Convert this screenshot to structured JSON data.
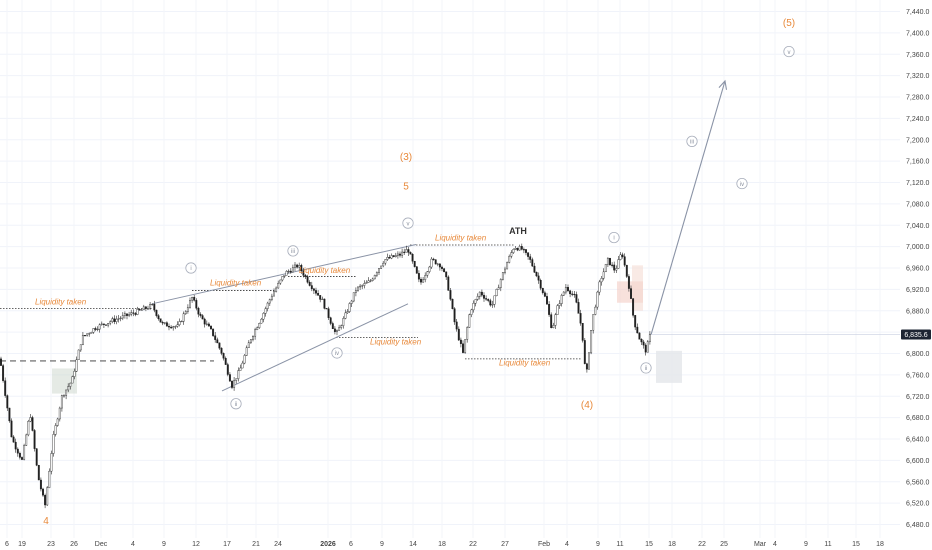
{
  "chart_data": {
    "type": "candlestick",
    "title": "",
    "xlabel": "",
    "ylabel": "",
    "ylim": [
      6455,
      7450
    ],
    "x_tick_labels": [
      "6",
      "19",
      "23",
      "26",
      "Dec",
      "4",
      "9",
      "12",
      "17",
      "21",
      "24",
      "2026",
      "6",
      "9",
      "14",
      "18",
      "22",
      "27",
      "Feb",
      "4",
      "9",
      "11",
      "15",
      "18",
      "22",
      "25",
      "Mar",
      "4",
      "9",
      "11",
      "15",
      "18"
    ],
    "y_ticks": [
      6480,
      6520,
      6560,
      6600,
      6640,
      6680,
      6720,
      6760,
      6800,
      6840,
      6880,
      6920,
      6960,
      7000,
      7040,
      7080,
      7120,
      7160,
      7200,
      7240,
      7280,
      7320,
      7360,
      7400,
      7440
    ],
    "y_tick_labels": [
      "6,480.0",
      "6,520.0",
      "6,560.0",
      "6,600.0",
      "6,640.0",
      "6,680.0",
      "6,720.0",
      "6,760.0",
      "6,800.0",
      "6,840.0",
      "6,880.0",
      "6,920.0",
      "6,960.0",
      "7,000.0",
      "7,040.0",
      "7,080.0",
      "7,120.0",
      "7,160.0",
      "7,200.0",
      "7,240.0",
      "7,280.0",
      "7,320.0",
      "7,360.0",
      "7,400.0",
      "7,440.0"
    ],
    "last_price": 6835.6,
    "last_price_label": "6,835.6",
    "price_path": [
      [
        0,
        6790
      ],
      [
        12,
        6640
      ],
      [
        22,
        6600
      ],
      [
        30,
        6690
      ],
      [
        38,
        6570
      ],
      [
        45,
        6515
      ],
      [
        53,
        6640
      ],
      [
        62,
        6720
      ],
      [
        72,
        6750
      ],
      [
        82,
        6830
      ],
      [
        95,
        6848
      ],
      [
        110,
        6860
      ],
      [
        125,
        6870
      ],
      [
        140,
        6880
      ],
      [
        152,
        6890
      ],
      [
        162,
        6855
      ],
      [
        178,
        6850
      ],
      [
        192,
        6905
      ],
      [
        200,
        6870
      ],
      [
        212,
        6840
      ],
      [
        222,
        6800
      ],
      [
        232,
        6740
      ],
      [
        240,
        6770
      ],
      [
        250,
        6825
      ],
      [
        262,
        6870
      ],
      [
        272,
        6910
      ],
      [
        285,
        6950
      ],
      [
        298,
        6965
      ],
      [
        310,
        6930
      ],
      [
        322,
        6900
      ],
      [
        336,
        6835
      ],
      [
        345,
        6870
      ],
      [
        356,
        6920
      ],
      [
        370,
        6935
      ],
      [
        384,
        6975
      ],
      [
        400,
        6985
      ],
      [
        408,
        6995
      ],
      [
        420,
        6930
      ],
      [
        432,
        6975
      ],
      [
        441,
        6965
      ],
      [
        447,
        6935
      ],
      [
        455,
        6855
      ],
      [
        463,
        6800
      ],
      [
        470,
        6880
      ],
      [
        480,
        6915
      ],
      [
        492,
        6890
      ],
      [
        500,
        6935
      ],
      [
        507,
        6970
      ],
      [
        514,
        7000
      ],
      [
        522,
        6995
      ],
      [
        530,
        6975
      ],
      [
        538,
        6940
      ],
      [
        546,
        6900
      ],
      [
        552,
        6845
      ],
      [
        558,
        6890
      ],
      [
        566,
        6925
      ],
      [
        575,
        6905
      ],
      [
        582,
        6845
      ],
      [
        586,
        6750
      ],
      [
        592,
        6860
      ],
      [
        600,
        6935
      ],
      [
        608,
        6975
      ],
      [
        615,
        6955
      ],
      [
        622,
        6990
      ],
      [
        629,
        6925
      ],
      [
        634,
        6860
      ],
      [
        640,
        6825
      ],
      [
        646,
        6805
      ],
      [
        651,
        6840
      ]
    ],
    "wave_labels_large": [
      {
        "text": "(3)",
        "t": 406,
        "p": 7162
      },
      {
        "text": "5",
        "t": 406,
        "p": 7107
      },
      {
        "text": "ATH",
        "t": 518,
        "p": 7024
      },
      {
        "text": "(4)",
        "t": 587,
        "p": 6698
      },
      {
        "text": "4",
        "t": 46,
        "p": 6481
      },
      {
        "text": "(5)",
        "t": 789,
        "p": 7413
      }
    ],
    "wave_labels_circled": [
      {
        "text": "i",
        "t": 191,
        "p": 6960
      },
      {
        "text": "ii",
        "t": 236,
        "p": 6706
      },
      {
        "text": "iii",
        "t": 293,
        "p": 6992
      },
      {
        "text": "iv",
        "t": 337,
        "p": 6801
      },
      {
        "text": "v",
        "t": 408,
        "p": 7044
      },
      {
        "text": "i",
        "t": 614,
        "p": 7017
      },
      {
        "text": "ii",
        "t": 646,
        "p": 6773
      },
      {
        "text": "iii",
        "t": 692,
        "p": 7197
      },
      {
        "text": "iv",
        "t": 742,
        "p": 7118
      },
      {
        "text": "v",
        "t": 789,
        "p": 7365
      }
    ],
    "liquidity_labels": [
      {
        "text": "Liquidity taken",
        "t": 35,
        "p": 6892
      },
      {
        "text": "Liquidity taken",
        "t": 210,
        "p": 6927
      },
      {
        "text": "Liquidity taken",
        "t": 299,
        "p": 6951
      },
      {
        "text": "Liquidity taken",
        "t": 435,
        "p": 7011
      },
      {
        "text": "Liquidity taken",
        "t": 370,
        "p": 6817
      },
      {
        "text": "Liquidity taken",
        "t": 499,
        "p": 6778
      }
    ],
    "liquidity_lines": [
      {
        "t1": 0,
        "t2": 152,
        "p": 6884
      },
      {
        "t1": 192,
        "t2": 275,
        "p": 6918
      },
      {
        "t1": 288,
        "t2": 356,
        "p": 6944
      },
      {
        "t1": 410,
        "t2": 514,
        "p": 7003
      },
      {
        "t1": 336,
        "t2": 418,
        "p": 6830
      },
      {
        "t1": 465,
        "t2": 582,
        "p": 6790
      }
    ],
    "dashed_level": {
      "t1": 0,
      "t2": 214,
      "p": 6786
    },
    "wedge_upper": [
      [
        152,
        6893
      ],
      [
        416,
        7004
      ]
    ],
    "wedge_lower": [
      [
        222,
        6730
      ],
      [
        408,
        6893
      ]
    ],
    "projection": [
      [
        651,
        6835
      ],
      [
        725,
        7310
      ]
    ]
  }
}
